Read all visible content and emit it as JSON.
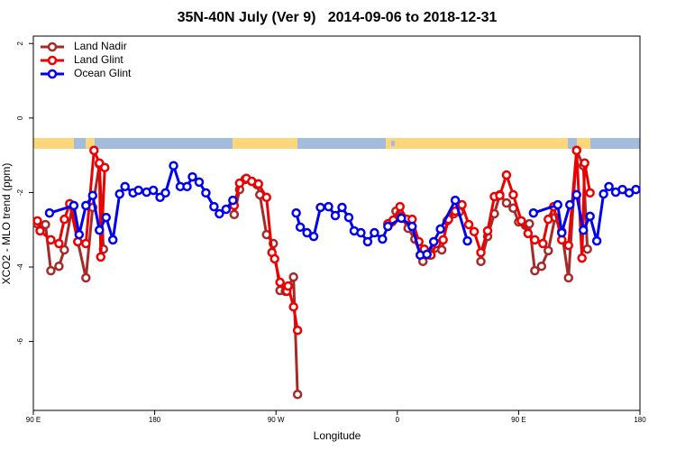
{
  "chart_data": {
    "type": "line",
    "title": "35N-40N July (Ver 9)   2014-09-06 to 2018-12-31",
    "x_label": "Longitude",
    "y_label": "XCO2 - MLO trend (ppm)",
    "xlim": [
      90,
      540
    ],
    "ylim": [
      -7.85,
      2.2
    ],
    "xticks": [
      {
        "value": 90,
        "label": "90 E"
      },
      {
        "value": 180,
        "label": "180"
      },
      {
        "value": 270,
        "label": "90 W"
      },
      {
        "value": 360,
        "label": "0"
      },
      {
        "value": 450,
        "label": "90 E"
      },
      {
        "value": 540,
        "label": "180"
      }
    ],
    "yticks": [
      2,
      0,
      -2,
      -4,
      -6
    ],
    "legend": "top-left",
    "series": [
      {
        "name": "Land Nadir",
        "color": "#a52a2a",
        "x": [
          93,
          99,
          103,
          109,
          113,
          119,
          123,
          129,
          134,
          139,
          142,
          null,
          239,
          243,
          247,
          252,
          256,
          258,
          263,
          268,
          273,
          277,
          279,
          283,
          286,
          null,
          356,
          359,
          363,
          368,
          373,
          379,
          384,
          388,
          393,
          397,
          402,
          406,
          null,
          422,
          427,
          432,
          436,
          441,
          446,
          450,
          455,
          458,
          462,
          467,
          472,
          477,
          482,
          487,
          493,
          498,
          501
        ],
        "values": [
          -2.84,
          -2.86,
          -4.1,
          -3.98,
          -3.54,
          -2.35,
          -3.32,
          -4.29,
          -2.4,
          -1.24,
          -3.52,
          null,
          -2.59,
          -1.92,
          -1.65,
          -1.7,
          -1.79,
          -2.06,
          -3.13,
          -3.37,
          -4.63,
          -4.65,
          -4.53,
          -4.27,
          -7.42,
          null,
          -2.79,
          -2.5,
          -2.64,
          -2.96,
          -3.25,
          -3.85,
          -3.68,
          -3.49,
          -3.54,
          -2.76,
          -2.57,
          -2.52,
          null,
          -3.85,
          -3.18,
          -2.57,
          -2.06,
          -2.28,
          -2.42,
          -2.79,
          -2.88,
          -2.84,
          -4.1,
          -3.98,
          -3.56,
          -2.67,
          -3.05,
          -4.29,
          -0.87,
          -1.28,
          -3.52
        ]
      },
      {
        "name": "Land Glint",
        "color": "#ee0000",
        "x": [
          93,
          95,
          103,
          109,
          113,
          117,
          123,
          129,
          135,
          139,
          140,
          143,
          null,
          239,
          243,
          248,
          252,
          257,
          263,
          267,
          269,
          273,
          278,
          279,
          283,
          286,
          null,
          353,
          357,
          362,
          367,
          371,
          376,
          380,
          385,
          389,
          394,
          398,
          403,
          408,
          413,
          417,
          422,
          427,
          432,
          436,
          441,
          446,
          452,
          457,
          462,
          468,
          472,
          476,
          482,
          487,
          493,
          497,
          499,
          503
        ],
        "values": [
          -2.76,
          -3.03,
          -3.27,
          -3.37,
          -2.72,
          -2.3,
          -3.32,
          -3.37,
          -0.87,
          -1.21,
          -3.73,
          -1.33,
          null,
          -2.35,
          -1.75,
          -1.62,
          -1.7,
          -1.77,
          -2.13,
          -3.61,
          -3.78,
          -4.41,
          -4.65,
          -4.51,
          -5.07,
          -5.7,
          null,
          -2.84,
          -2.74,
          -2.38,
          -2.72,
          -2.72,
          -3.32,
          -3.52,
          -3.68,
          -3.37,
          -3.27,
          -2.72,
          -2.5,
          -2.33,
          -2.86,
          -3.05,
          -3.61,
          -3.03,
          -2.11,
          -2.08,
          -1.53,
          -2.06,
          -2.76,
          -3.1,
          -3.27,
          -3.37,
          -2.72,
          -2.38,
          -3.27,
          -3.42,
          -0.87,
          -3.76,
          -1.21,
          -2.01
        ]
      },
      {
        "name": "Ocean Glint",
        "color": "#0000ee",
        "x": [
          102,
          120,
          124,
          129,
          134,
          139,
          144,
          149,
          154,
          158,
          164,
          168,
          174,
          179,
          184,
          188,
          194,
          199,
          204,
          208,
          213,
          218,
          224,
          228,
          233,
          238,
          null,
          285,
          288,
          293,
          298,
          303,
          309,
          314,
          319,
          324,
          328,
          333,
          338,
          343,
          349,
          353,
          363,
          371,
          377,
          382,
          387,
          392,
          403,
          412,
          null,
          461,
          479,
          482,
          488,
          493,
          498,
          503,
          508,
          513,
          517,
          522,
          527,
          532,
          537
        ],
        "values": [
          -2.55,
          -2.35,
          -3.13,
          -2.35,
          -2.08,
          -3.01,
          -2.67,
          -3.27,
          -2.04,
          -1.84,
          -2.01,
          -1.94,
          -1.99,
          -1.94,
          -2.13,
          -2.01,
          -1.28,
          -1.84,
          -1.84,
          -1.58,
          -1.72,
          -2.01,
          -2.38,
          -2.57,
          -2.45,
          -2.21,
          null,
          -2.55,
          -2.93,
          -3.08,
          -3.18,
          -2.4,
          -2.38,
          -2.62,
          -2.4,
          -2.67,
          -3.03,
          -3.08,
          -3.32,
          -3.08,
          -3.25,
          -2.91,
          -2.69,
          -2.91,
          -3.68,
          -3.66,
          -3.32,
          -2.98,
          -2.21,
          -3.3,
          null,
          -2.55,
          -2.33,
          -3.08,
          -2.33,
          -2.06,
          -3.01,
          -2.64,
          -3.3,
          -2.04,
          -1.84,
          -1.99,
          -1.92,
          -2.01,
          -1.92
        ]
      }
    ]
  }
}
